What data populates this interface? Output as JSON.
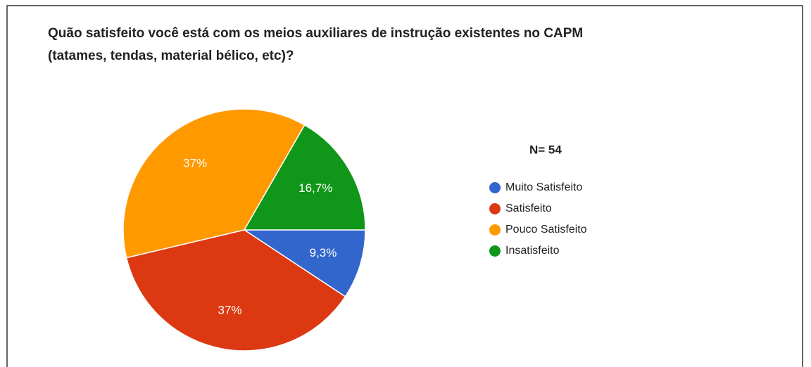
{
  "chart_data": {
    "type": "pie",
    "title": [
      "Quão satisfeito você está com os meios auxiliares de instrução existentes no CAPM",
      "(tatames, tendas, material bélico, etc)?"
    ],
    "annotation": "N= 54",
    "categories": [
      "Muito Satisfeito",
      "Satisfeito",
      "Pouco Satisfeito",
      "Insatisfeito"
    ],
    "values": [
      9.3,
      37,
      37,
      16.7
    ],
    "value_labels": [
      "9,3%",
      "37%",
      "37%",
      "16,7%"
    ],
    "colors": [
      "#3366cc",
      "#dc3912",
      "#ff9900",
      "#109618"
    ]
  }
}
